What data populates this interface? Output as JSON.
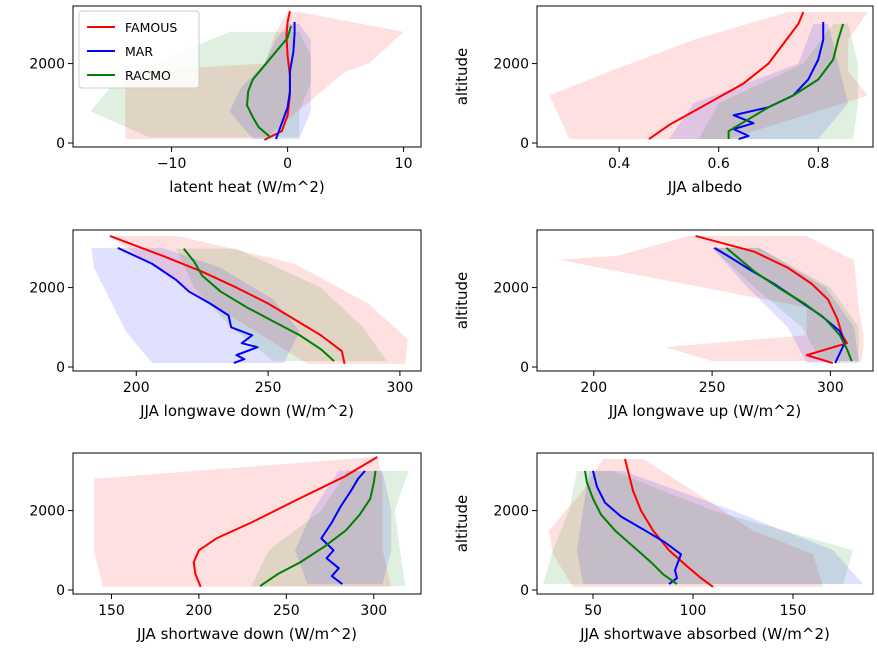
{
  "colors": {
    "FAMOUS": "#ff0000",
    "MAR": "#0000ff",
    "RACMO": "#008000"
  },
  "legend": {
    "placement": "upper-left",
    "entries": [
      "FAMOUS",
      "MAR",
      "RACMO"
    ]
  },
  "chart_data": [
    {
      "type": "line",
      "xlabel": "latent heat (W/m^2)",
      "ylabel": "",
      "xlim": [
        -18.5,
        11.5
      ],
      "ylim": [
        -100,
        3450
      ],
      "xticks": [
        -10,
        0,
        10
      ],
      "yticks": [
        0,
        2000
      ],
      "series": [
        {
          "name": "FAMOUS",
          "x": [
            -2.0,
            -0.5,
            0.0,
            0.2,
            0.2,
            0.0,
            -0.1,
            0.0,
            0.2
          ],
          "y": [
            80,
            300,
            700,
            1200,
            1700,
            2200,
            2700,
            3050,
            3320
          ],
          "band": {
            "y": [
              100,
              1800,
              2000,
              2800,
              3300
            ],
            "lo": [
              -14,
              -14,
              -2,
              -1,
              0
            ],
            "hi": [
              -2,
              5,
              7,
              10,
              1
            ]
          }
        },
        {
          "name": "MAR",
          "x": [
            -1.0,
            -0.5,
            0.0,
            0.2,
            0.2,
            0.5,
            0.6,
            0.6
          ],
          "y": [
            100,
            500,
            900,
            1300,
            1800,
            2300,
            2750,
            3050
          ],
          "band": {
            "y": [
              100,
              800,
              1400,
              2000,
              2600,
              3000
            ],
            "lo": [
              -3,
              -5,
              -4,
              -2,
              -1,
              0
            ],
            "hi": [
              1,
              2,
              2,
              2,
              2,
              1
            ]
          }
        },
        {
          "name": "RACMO",
          "x": [
            -1.5,
            -2.5,
            -3.0,
            -3.5,
            -3.4,
            -3.0,
            -2.0,
            -1.0,
            0.0,
            0.3
          ],
          "y": [
            150,
            400,
            650,
            950,
            1300,
            1600,
            1950,
            2300,
            2650,
            2950
          ],
          "band": {
            "y": [
              150,
              800,
              1500,
              2200,
              2800
            ],
            "lo": [
              -12,
              -17,
              -15,
              -10,
              -5
            ],
            "hi": [
              1,
              1,
              2,
              2,
              1
            ]
          }
        }
      ]
    },
    {
      "type": "line",
      "xlabel": "JJA albedo",
      "ylabel": "altitude",
      "xlim": [
        0.235,
        0.91
      ],
      "ylim": [
        -100,
        3450
      ],
      "xticks": [
        0.4,
        0.6,
        0.8
      ],
      "yticks": [
        0,
        2000
      ],
      "series": [
        {
          "name": "FAMOUS",
          "x": [
            0.46,
            0.5,
            0.55,
            0.6,
            0.65,
            0.7,
            0.73,
            0.76,
            0.77
          ],
          "y": [
            100,
            450,
            800,
            1150,
            1500,
            2000,
            2500,
            3000,
            3300
          ],
          "band": {
            "y": [
              100,
              1200,
              1800,
              2600,
              3300
            ],
            "lo": [
              0.3,
              0.26,
              0.38,
              0.55,
              0.74
            ],
            "hi": [
              0.62,
              0.9,
              0.86,
              0.86,
              0.9
            ]
          }
        },
        {
          "name": "MAR",
          "x": [
            0.64,
            0.66,
            0.63,
            0.67,
            0.63,
            0.7,
            0.75,
            0.78,
            0.8,
            0.81,
            0.81
          ],
          "y": [
            100,
            180,
            350,
            500,
            700,
            900,
            1200,
            1600,
            2100,
            2600,
            3050
          ],
          "band": {
            "y": [
              100,
              1000,
              2000,
              3000
            ],
            "lo": [
              0.5,
              0.55,
              0.76,
              0.79
            ],
            "hi": [
              0.8,
              0.86,
              0.84,
              0.82
            ]
          }
        },
        {
          "name": "RACMO",
          "x": [
            0.62,
            0.62,
            0.66,
            0.7,
            0.75,
            0.8,
            0.83,
            0.84,
            0.85
          ],
          "y": [
            100,
            300,
            600,
            900,
            1200,
            1600,
            2100,
            2600,
            3000
          ],
          "band": {
            "y": [
              100,
              1000,
              2000,
              3000
            ],
            "lo": [
              0.56,
              0.6,
              0.77,
              0.83
            ],
            "hi": [
              0.87,
              0.88,
              0.88,
              0.86
            ]
          }
        }
      ]
    },
    {
      "type": "line",
      "xlabel": "JJA longwave down (W/m^2)",
      "ylabel": "",
      "xlim": [
        176,
        308
      ],
      "ylim": [
        -100,
        3450
      ],
      "xticks": [
        200,
        250,
        300
      ],
      "yticks": [
        0,
        2000
      ],
      "series": [
        {
          "name": "FAMOUS",
          "x": [
            279,
            278,
            270,
            260,
            250,
            238,
            225,
            210,
            190
          ],
          "y": [
            80,
            400,
            800,
            1200,
            1600,
            2000,
            2400,
            2800,
            3300
          ],
          "band": {
            "y": [
              80,
              700,
              1600,
              2600,
              3300
            ],
            "lo": [
              265,
              250,
              228,
              205,
              190
            ],
            "hi": [
              302,
              303,
              288,
              260,
              216
            ]
          }
        },
        {
          "name": "MAR",
          "x": [
            237,
            241,
            238,
            246,
            240,
            244,
            236,
            235,
            228,
            220,
            215,
            206,
            193
          ],
          "y": [
            100,
            200,
            300,
            500,
            600,
            800,
            1000,
            1300,
            1600,
            1900,
            2200,
            2600,
            3000
          ],
          "band": {
            "y": [
              100,
              900,
              1700,
              2500,
              3000
            ],
            "lo": [
              206,
              196,
              190,
              184,
              183
            ],
            "hi": [
              256,
              262,
              252,
              232,
              210
            ]
          }
        },
        {
          "name": "RACMO",
          "x": [
            275,
            270,
            262,
            252,
            242,
            232,
            225,
            222,
            218
          ],
          "y": [
            150,
            450,
            800,
            1150,
            1500,
            1900,
            2300,
            2650,
            2980
          ],
          "band": {
            "y": [
              150,
              1000,
              2000,
              2980
            ],
            "lo": [
              252,
              236,
              222,
              215
            ],
            "hi": [
              295,
              286,
              270,
              238
            ]
          }
        }
      ]
    },
    {
      "type": "line",
      "xlabel": "JJA longwave up (W/m^2)",
      "ylabel": "altitude",
      "xlim": [
        176,
        318
      ],
      "ylim": [
        -100,
        3450
      ],
      "xticks": [
        200,
        250,
        300
      ],
      "yticks": [
        0,
        2000
      ],
      "series": [
        {
          "name": "FAMOUS",
          "x": [
            301,
            290,
            307,
            305,
            303,
            299,
            292,
            282,
            268,
            243
          ],
          "y": [
            100,
            300,
            600,
            800,
            1200,
            1700,
            2100,
            2500,
            2900,
            3300
          ],
          "band": {
            "y": [
              150,
              500,
              800,
              1500,
              2700,
              2800,
              3300
            ],
            "lo": [
              250,
              230,
              290,
              290,
              185,
              210,
              240
            ],
            "hi": [
              313,
              314,
              314,
              312,
              310,
              306,
              290
            ]
          }
        },
        {
          "name": "MAR",
          "x": [
            302,
            304,
            306,
            304,
            296,
            286,
            276,
            266,
            258,
            251
          ],
          "y": [
            100,
            350,
            600,
            900,
            1300,
            1700,
            2100,
            2450,
            2750,
            3000
          ],
          "band": {
            "y": [
              100,
              1000,
              2000,
              3000
            ],
            "lo": [
              290,
              282,
              265,
              250
            ],
            "hi": [
              312,
              310,
              298,
              270
            ]
          }
        },
        {
          "name": "RACMO",
          "x": [
            309,
            307,
            304,
            298,
            289,
            278,
            268,
            261,
            256
          ],
          "y": [
            150,
            450,
            800,
            1200,
            1600,
            2000,
            2400,
            2750,
            3000
          ],
          "band": {
            "y": [
              150,
              1000,
              2000,
              3000
            ],
            "lo": [
              296,
              288,
              268,
              250
            ],
            "hi": [
              312,
              312,
              300,
              270
            ]
          }
        }
      ]
    },
    {
      "type": "line",
      "xlabel": "JJA shortwave down (W/m^2)",
      "ylabel": "",
      "xlim": [
        128,
        327
      ],
      "ylim": [
        -100,
        3450
      ],
      "xticks": [
        150,
        200,
        250,
        300
      ],
      "yticks": [
        0,
        2000
      ],
      "series": [
        {
          "name": "FAMOUS",
          "x": [
            201,
            198,
            197,
            200,
            210,
            230,
            255,
            283,
            302
          ],
          "y": [
            80,
            400,
            700,
            1000,
            1300,
            1700,
            2250,
            2850,
            3350
          ],
          "band": {
            "y": [
              80,
              1000,
              2800,
              3350
            ],
            "lo": [
              145,
              140,
              140,
              300
            ],
            "hi": [
              310,
              305,
              305,
              302
            ]
          }
        },
        {
          "name": "MAR",
          "x": [
            282,
            276,
            280,
            273,
            277,
            270,
            276,
            281,
            287,
            291,
            295
          ],
          "y": [
            150,
            350,
            550,
            800,
            1000,
            1300,
            1700,
            2100,
            2500,
            2800,
            3000
          ],
          "band": {
            "y": [
              150,
              1000,
              2000,
              3000
            ],
            "lo": [
              262,
              255,
              265,
              280
            ],
            "hi": [
              305,
              310,
              310,
              305
            ]
          }
        },
        {
          "name": "RACMO",
          "x": [
            235,
            245,
            258,
            272,
            284,
            292,
            298,
            300,
            301
          ],
          "y": [
            100,
            400,
            700,
            1100,
            1500,
            1900,
            2300,
            2700,
            3000
          ],
          "band": {
            "y": [
              100,
              1000,
              2000,
              3000
            ],
            "lo": [
              230,
              240,
              270,
              285
            ],
            "hi": [
              318,
              315,
              312,
              320
            ]
          }
        }
      ]
    },
    {
      "type": "line",
      "xlabel": "JJA shortwave absorbed (W/m^2)",
      "ylabel": "altitude",
      "xlim": [
        22,
        190
      ],
      "ylim": [
        -100,
        3450
      ],
      "xticks": [
        50,
        100,
        150
      ],
      "yticks": [
        0,
        2000
      ],
      "series": [
        {
          "name": "FAMOUS",
          "x": [
            110,
            104,
            97,
            88,
            80,
            74,
            70,
            68,
            66
          ],
          "y": [
            80,
            300,
            600,
            1000,
            1500,
            2000,
            2500,
            2900,
            3300
          ],
          "band": {
            "y": [
              80,
              900,
              1500,
              2500,
              3300
            ],
            "lo": [
              40,
              30,
              28,
              45,
              55
            ],
            "hi": [
              165,
              160,
              130,
              100,
              75
            ]
          }
        },
        {
          "name": "MAR",
          "x": [
            88,
            92,
            91,
            94,
            86,
            76,
            64,
            56,
            52,
            50
          ],
          "y": [
            150,
            300,
            500,
            900,
            1200,
            1500,
            1850,
            2200,
            2600,
            3000
          ],
          "band": {
            "y": [
              150,
              1000,
              2000,
              3000
            ],
            "lo": [
              45,
              42,
              45,
              48
            ],
            "hi": [
              185,
              170,
              120,
              65
            ]
          }
        },
        {
          "name": "RACMO",
          "x": [
            92,
            85,
            79,
            70,
            61,
            54,
            50,
            47,
            46
          ],
          "y": [
            150,
            400,
            700,
            1100,
            1500,
            1900,
            2300,
            2700,
            3000
          ],
          "band": {
            "y": [
              150,
              1000,
              2000,
              3000
            ],
            "lo": [
              25,
              30,
              38,
              42
            ],
            "hi": [
              175,
              180,
              110,
              60
            ]
          }
        }
      ]
    }
  ]
}
